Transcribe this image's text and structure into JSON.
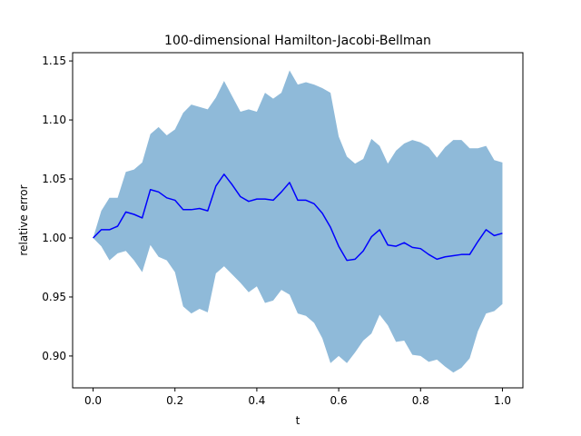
{
  "chart_data": {
    "type": "area",
    "title": "100-dimensional Hamilton-Jacobi-Bellman",
    "xlabel": "t",
    "ylabel": "relative error",
    "xlim": [
      -0.05,
      1.05
    ],
    "ylim": [
      0.873,
      1.157
    ],
    "xticks": [
      0.0,
      0.2,
      0.4,
      0.6,
      0.8,
      1.0
    ],
    "xtick_labels": [
      "0.0",
      "0.2",
      "0.4",
      "0.6",
      "0.8",
      "1.0"
    ],
    "yticks": [
      0.9,
      0.95,
      1.0,
      1.05,
      1.1,
      1.15
    ],
    "ytick_labels": [
      "0.90",
      "0.95",
      "1.00",
      "1.05",
      "1.10",
      "1.15"
    ],
    "grid": false,
    "legend": "none",
    "line_color": "#0000ff",
    "band_color": "#8fbad9",
    "x": [
      0.0,
      0.02,
      0.04,
      0.06,
      0.08,
      0.1,
      0.12,
      0.14,
      0.16,
      0.18,
      0.2,
      0.22,
      0.24,
      0.26,
      0.28,
      0.3,
      0.32,
      0.34,
      0.36,
      0.38,
      0.4,
      0.42,
      0.44,
      0.46,
      0.48,
      0.5,
      0.52,
      0.54,
      0.56,
      0.58,
      0.6,
      0.62,
      0.64,
      0.66,
      0.68,
      0.7,
      0.72,
      0.74,
      0.76,
      0.78,
      0.8,
      0.82,
      0.84,
      0.86,
      0.88,
      0.9,
      0.92,
      0.94,
      0.96,
      0.98,
      1.0
    ],
    "series": [
      {
        "role": "mean",
        "values": [
          1.0,
          1.007,
          1.007,
          1.01,
          1.022,
          1.02,
          1.017,
          1.041,
          1.039,
          1.034,
          1.032,
          1.024,
          1.024,
          1.025,
          1.023,
          1.044,
          1.054,
          1.045,
          1.035,
          1.031,
          1.033,
          1.033,
          1.032,
          1.039,
          1.047,
          1.032,
          1.032,
          1.029,
          1.021,
          1.009,
          0.993,
          0.981,
          0.982,
          0.989,
          1.001,
          1.007,
          0.994,
          0.993,
          0.996,
          0.992,
          0.991,
          0.986,
          0.982,
          0.984,
          0.985,
          0.986,
          0.986,
          0.997,
          1.007,
          1.002,
          1.004
        ]
      },
      {
        "role": "upper",
        "values": [
          1.0,
          1.023,
          1.034,
          1.034,
          1.056,
          1.058,
          1.064,
          1.088,
          1.094,
          1.087,
          1.092,
          1.106,
          1.113,
          1.111,
          1.109,
          1.119,
          1.133,
          1.12,
          1.107,
          1.109,
          1.107,
          1.123,
          1.118,
          1.123,
          1.142,
          1.13,
          1.132,
          1.13,
          1.127,
          1.123,
          1.086,
          1.069,
          1.063,
          1.067,
          1.084,
          1.078,
          1.063,
          1.074,
          1.08,
          1.083,
          1.081,
          1.077,
          1.068,
          1.077,
          1.083,
          1.083,
          1.076,
          1.076,
          1.078,
          1.066,
          1.064
        ]
      },
      {
        "role": "lower",
        "values": [
          1.0,
          0.993,
          0.981,
          0.987,
          0.989,
          0.981,
          0.971,
          0.994,
          0.984,
          0.981,
          0.971,
          0.942,
          0.936,
          0.94,
          0.937,
          0.97,
          0.976,
          0.969,
          0.962,
          0.954,
          0.959,
          0.945,
          0.947,
          0.956,
          0.952,
          0.936,
          0.934,
          0.928,
          0.915,
          0.894,
          0.9,
          0.894,
          0.903,
          0.913,
          0.919,
          0.935,
          0.926,
          0.912,
          0.913,
          0.901,
          0.9,
          0.895,
          0.897,
          0.891,
          0.886,
          0.89,
          0.898,
          0.921,
          0.936,
          0.938,
          0.944
        ]
      }
    ]
  }
}
